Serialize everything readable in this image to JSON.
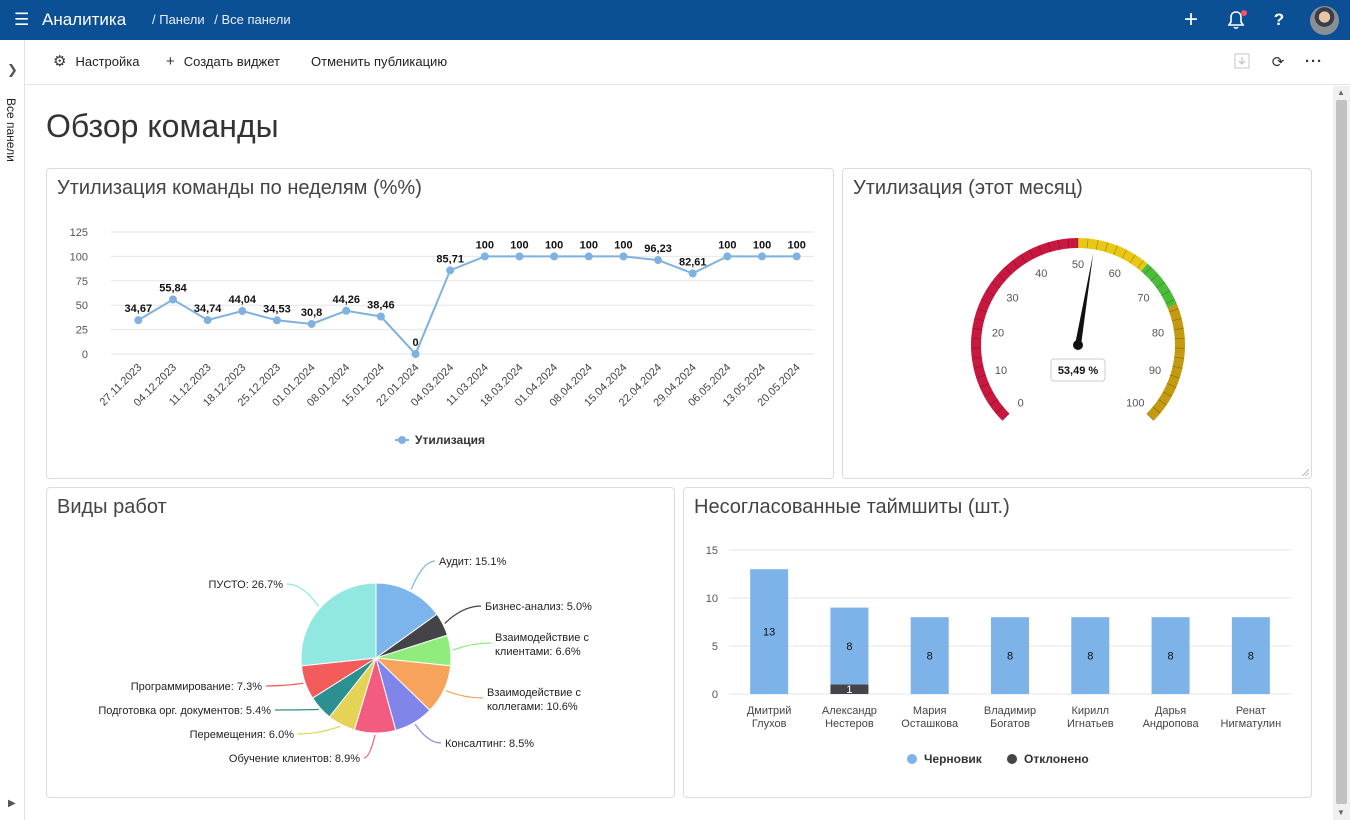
{
  "topbar": {
    "menu_icon": "hamburger-icon",
    "app_name": "Аналитика",
    "breadcrumb": [
      "/ Панели",
      "/ Все панели"
    ],
    "icons": [
      "plus-icon",
      "bell-icon",
      "help-icon",
      "avatar"
    ]
  },
  "rail": {
    "label": "Все панели"
  },
  "toolbar": {
    "settings_label": "Настройка",
    "add_widget_label": "Создать виджет",
    "unpublish_label": "Отменить публикацию"
  },
  "page": {
    "title": "Обзор команды"
  },
  "widgets": {
    "utilization_weekly": {
      "title": "Утилизация команды по неделям (%%)",
      "legend": "Утилизация"
    },
    "utilization_month": {
      "title": "Утилизация (этот месяц)"
    },
    "work_types": {
      "title": "Виды работ"
    },
    "timesheets": {
      "title": "Несогласованные таймшиты (шт.)"
    }
  },
  "colors": {
    "brand": "#0b4f95",
    "line": "#7fb1e1",
    "bar_draft": "#7eb3ea",
    "bar_rejected": "#434348"
  },
  "chart_data": [
    {
      "type": "line",
      "x": [
        "27.11.2023",
        "04.12.2023",
        "11.12.2023",
        "18.12.2023",
        "25.12.2023",
        "01.01.2024",
        "08.01.2024",
        "15.01.2024",
        "22.01.2024",
        "04.03.2024",
        "11.03.2024",
        "18.03.2024",
        "01.04.2024",
        "08.04.2024",
        "15.04.2024",
        "22.04.2024",
        "29.04.2024",
        "06.05.2024",
        "13.05.2024",
        "20.05.2024"
      ],
      "series": [
        {
          "name": "Утилизация",
          "values": [
            34.67,
            55.84,
            34.74,
            44.04,
            34.53,
            30.8,
            44.26,
            38.46,
            0,
            85.71,
            100,
            100,
            100,
            100,
            100,
            96.23,
            82.61,
            100,
            100,
            100
          ]
        }
      ],
      "data_labels": [
        "34,67",
        "55,84",
        "34,74",
        "44,04",
        "34,53",
        "30,8",
        "44,26",
        "38,46",
        "0",
        "85,71",
        "100",
        "100",
        "100",
        "100",
        "100",
        "96,23",
        "82,61",
        "100",
        "100",
        "100"
      ],
      "y_ticks": [
        "125",
        "100",
        "75",
        "50",
        "25",
        "0"
      ],
      "ylim": [
        0,
        125
      ],
      "grid": true,
      "legend": "bottom"
    },
    {
      "type": "gauge",
      "value": 53.49,
      "value_label": "53,49 %",
      "range": [
        0,
        100
      ],
      "ticks": [
        "0",
        "10",
        "20",
        "30",
        "40",
        "50",
        "60",
        "70",
        "80",
        "90",
        "100"
      ],
      "bands": [
        {
          "from": 0,
          "to": 50,
          "color": "#c9183f"
        },
        {
          "from": 50,
          "to": 65,
          "color": "#e8c814"
        },
        {
          "from": 65,
          "to": 75,
          "color": "#4dbb3a"
        },
        {
          "from": 75,
          "to": 100,
          "color": "#c49a10"
        }
      ]
    },
    {
      "type": "pie",
      "slices": [
        {
          "label": "Аудит: 15.1%",
          "value": 15.1,
          "color": "#7cb5ec"
        },
        {
          "label": "Бизнес-анализ: 5.0%",
          "value": 5.0,
          "color": "#434348"
        },
        {
          "label": "Взаимодействие с клиентами: 6.6%",
          "value": 6.6,
          "color": "#90ed7d"
        },
        {
          "label": "Взаимодействие с коллегами: 10.6%",
          "value": 10.6,
          "color": "#f7a35c"
        },
        {
          "label": "Консалтинг: 8.5%",
          "value": 8.5,
          "color": "#8085e9"
        },
        {
          "label": "Обучение клиентов: 8.9%",
          "value": 8.9,
          "color": "#f15c80"
        },
        {
          "label": "Перемещения: 6.0%",
          "value": 6.0,
          "color": "#e4d354"
        },
        {
          "label": "Подготовка орг. документов: 5.4%",
          "value": 5.4,
          "color": "#2b908f"
        },
        {
          "label": "Программирование: 7.3%",
          "value": 7.3,
          "color": "#f45b5b"
        },
        {
          "label": "ПУСТО: 26.7%",
          "value": 26.7,
          "color": "#91e8e1"
        }
      ]
    },
    {
      "type": "bar",
      "stacked": true,
      "categories": [
        "Дмитрий Глухов",
        "Александр Нестеров",
        "Мария Осташкова",
        "Владимир Богатов",
        "Кирилл Игнатьев",
        "Дарья Андропова",
        "Ренат Нигматулин"
      ],
      "series": [
        {
          "name": "Черновик",
          "values": [
            13,
            8,
            8,
            8,
            8,
            8,
            8
          ]
        },
        {
          "name": "Отклонено",
          "values": [
            0,
            1,
            0,
            0,
            0,
            0,
            0
          ]
        }
      ],
      "y_ticks": [
        "15",
        "10",
        "5",
        "0"
      ],
      "ylim": [
        0,
        15
      ],
      "grid": true,
      "legend": "bottom"
    }
  ]
}
